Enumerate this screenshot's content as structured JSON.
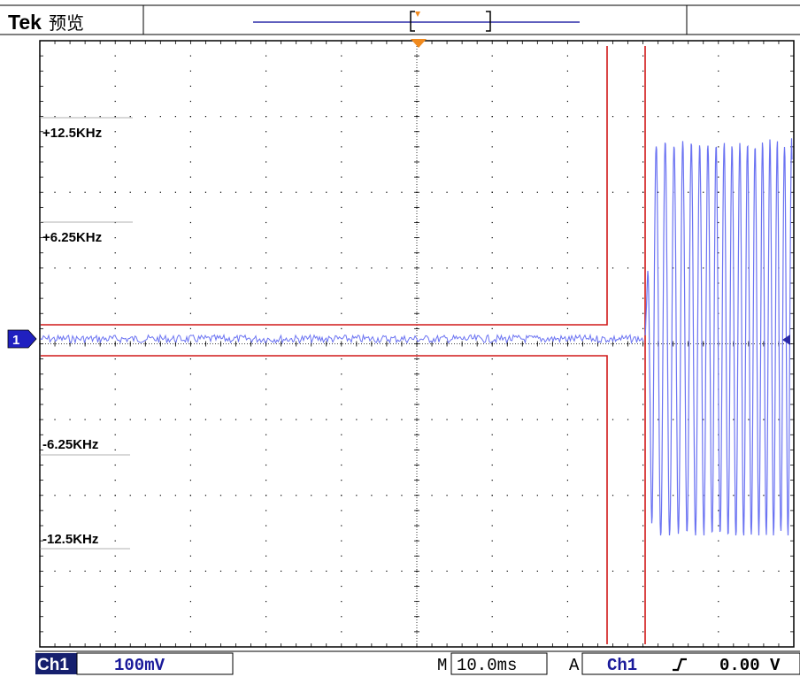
{
  "header": {
    "brand": "Tek",
    "status": "预览"
  },
  "screen": {
    "background": "#ffffff",
    "grid_color": "#000000",
    "trace_color": "#6b73f2",
    "cursor_color": "#d01818",
    "trigger_color": "#f08a1e",
    "channel_marker_color": "#2020c0",
    "divisions_x": 10,
    "divisions_y": 8
  },
  "channel_marker": {
    "label": "1"
  },
  "frequency_labels": [
    {
      "text": "+12.5KHz",
      "level": 12.5
    },
    {
      "text": "+6.25KHz",
      "level": 6.25
    },
    {
      "text": "-6.25KHz",
      "level": -6.25
    },
    {
      "text": "-12.5KHz",
      "level": -12.5
    }
  ],
  "status_bar": {
    "channel": "Ch1",
    "scale": "100mV",
    "timebase_prefix": "M",
    "timebase": "10.0ms",
    "trigger_mode": "A",
    "trigger_source": "Ch1",
    "trigger_slope_icon": "rising-edge-icon",
    "trigger_level": "0.00 V"
  }
}
